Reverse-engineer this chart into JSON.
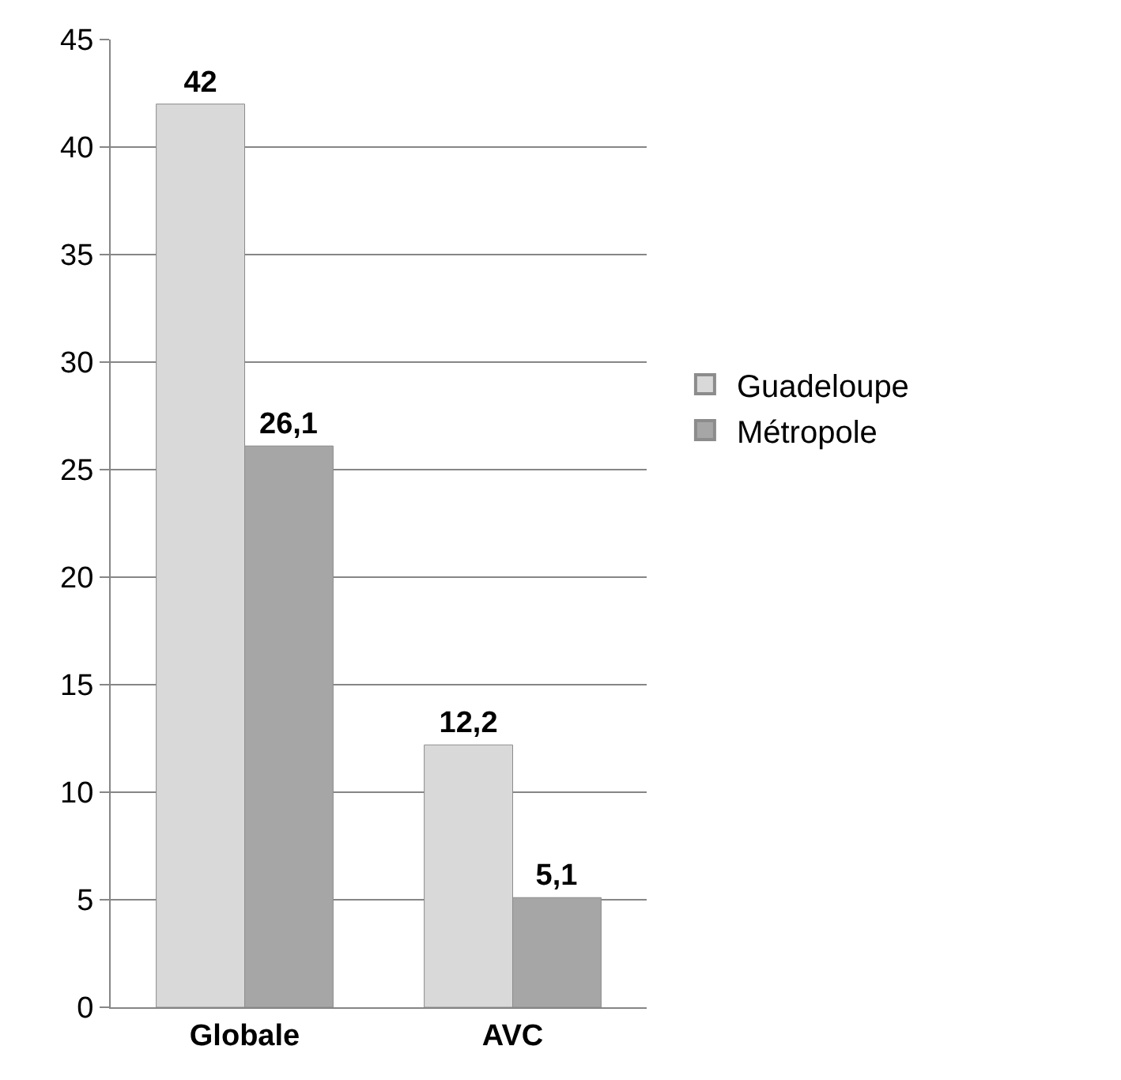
{
  "chart_data": {
    "type": "bar",
    "categories": [
      "Globale",
      "AVC"
    ],
    "series": [
      {
        "name": "Guadeloupe",
        "color": "#d9d9d9",
        "values": [
          42,
          12.2
        ],
        "value_labels": [
          "42",
          "12,2"
        ]
      },
      {
        "name": "Métropole",
        "color": "#a6a6a6",
        "values": [
          26.1,
          5.1
        ],
        "value_labels": [
          "26,1",
          "5,1"
        ]
      }
    ],
    "ylim": [
      0,
      45
    ],
    "yticks": [
      0,
      5,
      10,
      15,
      20,
      25,
      30,
      35,
      40,
      45
    ],
    "grid": "y",
    "legend": "right"
  }
}
